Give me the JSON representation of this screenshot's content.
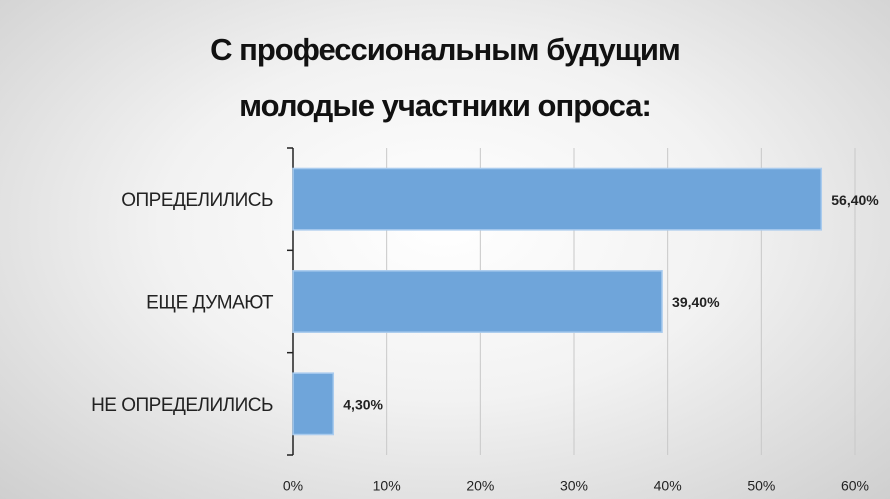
{
  "chart_data": {
    "type": "bar",
    "orientation": "horizontal",
    "title": "С профессиональным будущим молодые участники опроса:",
    "categories": [
      "ОПРЕДЕЛИЛИСЬ",
      "ЕЩЕ ДУМАЮТ",
      "НЕ ОПРЕДЕЛИЛИСЬ"
    ],
    "values": [
      56.4,
      39.4,
      4.3
    ],
    "value_labels": [
      "56,40%",
      "39,40%",
      "4,30%"
    ],
    "color": "#6fa5da",
    "xlim": [
      0,
      60
    ],
    "xticks": [
      {
        "value": 0,
        "label": "0%"
      },
      {
        "value": 10,
        "label": "10%"
      },
      {
        "value": 20,
        "label": "20%"
      },
      {
        "value": 30,
        "label": "30%"
      },
      {
        "value": 40,
        "label": "40%"
      },
      {
        "value": 50,
        "label": "50%"
      },
      {
        "value": 60,
        "label": "60%"
      }
    ],
    "grid": true
  }
}
